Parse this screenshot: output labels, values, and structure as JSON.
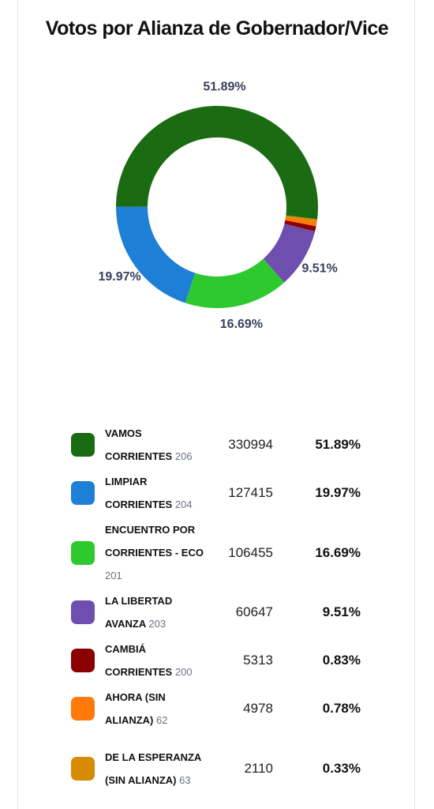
{
  "chart_data": {
    "type": "pie",
    "donut": true,
    "title": "Votos por Alianza de Gobernador/Vice",
    "categories": [
      "VAMOS CORRIENTES",
      "LIMPIAR CORRIENTES",
      "ENCUENTRO POR CORRIENTES - ECO",
      "LA LIBERTAD AVANZA",
      "CAMBIÁ CORRIENTES",
      "AHORA (SIN ALIANZA)",
      "DE LA ESPERANZA (SIN ALIANZA)"
    ],
    "list_numbers": [
      206,
      204,
      201,
      203,
      200,
      62,
      63
    ],
    "votes": [
      330994,
      127415,
      106455,
      60647,
      5313,
      4978,
      2110
    ],
    "values": [
      51.89,
      19.97,
      16.69,
      9.51,
      0.83,
      0.78,
      0.33
    ],
    "value_labels": [
      "51.89%",
      "19.97%",
      "16.69%",
      "9.51%",
      "0.83%",
      "0.78%",
      "0.33%"
    ],
    "colors": [
      "#1a6b12",
      "#1e7fd6",
      "#2ec92e",
      "#6e4fb0",
      "#8b0000",
      "#ff7a0a",
      "#d68b00"
    ]
  }
}
